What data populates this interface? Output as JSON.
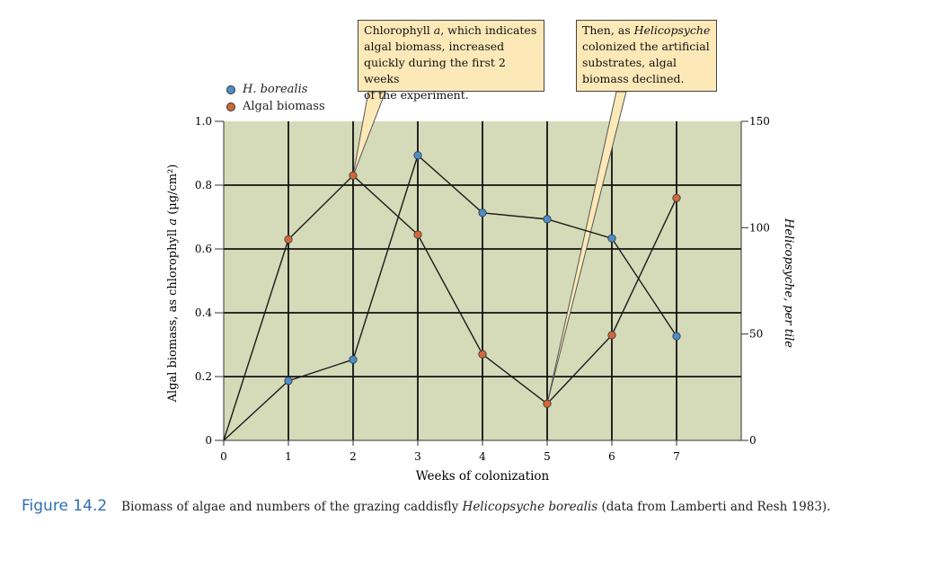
{
  "chart_data": {
    "type": "line",
    "xlabel": "Weeks of colonization",
    "ylabel_left": "Algal biomass, as chlorophyll a (µg/cm²)",
    "ylabel_right": "Helicopsyche, per tile",
    "x_ticks": [
      "0",
      "1",
      "2",
      "3",
      "4",
      "5",
      "6",
      "7"
    ],
    "y_left_ticks": [
      "0",
      "0.2",
      "0.4",
      "0.6",
      "0.8",
      "1.0"
    ],
    "y_right_ticks": [
      "0",
      "50",
      "100",
      "150"
    ],
    "xlim": [
      0,
      8
    ],
    "ylim_left": [
      0,
      1.0
    ],
    "ylim_right": [
      0,
      150
    ],
    "grid": true,
    "legend_position": "top-left",
    "series": [
      {
        "name": "H. borealis",
        "axis": "right",
        "color": "#4a8fc9",
        "x": [
          0,
          1,
          2,
          3,
          4,
          5,
          6,
          7
        ],
        "values": [
          0,
          28,
          38,
          134,
          107,
          104,
          95,
          49
        ]
      },
      {
        "name": "Algal biomass",
        "axis": "left",
        "color": "#d0683a",
        "x": [
          0,
          1,
          2,
          3,
          4,
          5,
          6,
          7
        ],
        "values": [
          0,
          0.63,
          0.83,
          0.645,
          0.27,
          0.115,
          0.33,
          0.76
        ]
      }
    ],
    "annotations": [
      {
        "id": "early",
        "target_x": 2,
        "target_series": "Algal biomass",
        "lines": [
          [
            "Chlorophyll ",
            "a",
            ", which indicates"
          ],
          [
            "algal biomass, increased"
          ],
          [
            "quickly during the first 2 weeks"
          ],
          [
            "of the experiment."
          ]
        ]
      },
      {
        "id": "late",
        "target_x": 5,
        "target_series": "Algal biomass",
        "lines": [
          [
            "Then, as ",
            "Helicopsyche",
            ""
          ],
          [
            "colonized the artificial"
          ],
          [
            "substrates, algal"
          ],
          [
            "biomass declined."
          ]
        ]
      }
    ]
  },
  "legend": {
    "items": [
      {
        "label": "H. borealis",
        "color": "#4a8fc9"
      },
      {
        "label": "Algal biomass",
        "color": "#d0683a"
      }
    ]
  },
  "callouts": {
    "early": {
      "line1_pre": "Chlorophyll ",
      "line1_italic": "a",
      "line1_post": ", which indicates",
      "line2": "algal biomass, increased",
      "line3": "quickly during the first 2 weeks",
      "line4": "of the experiment."
    },
    "late": {
      "line1_pre": "Then, as ",
      "line1_italic": "Helicopsyche",
      "line2": "colonized the artificial",
      "line3": "substrates, algal",
      "line4": "biomass declined."
    }
  },
  "caption": {
    "label": "Figure 14.2",
    "text_pre": "Biomass of algae and numbers of the grazing caddisfly ",
    "text_italic": "Helicopsyche borealis",
    "text_post": " (data from Lamberti and Resh 1983)."
  },
  "colors": {
    "plot_bg": "#d5dbb8",
    "grid": "#111111"
  }
}
